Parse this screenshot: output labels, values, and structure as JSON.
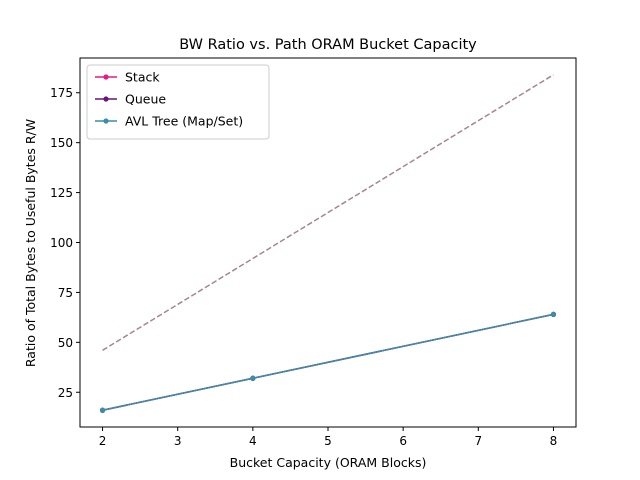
{
  "chart_data": {
    "type": "line",
    "title": "BW Ratio vs. Path ORAM Bucket Capacity",
    "xlabel": "Bucket Capacity (ORAM Blocks)",
    "ylabel": "Ratio of Total Bytes to Useful Bytes R/W",
    "xlim": [
      1.7,
      8.3
    ],
    "ylim": [
      7.6,
      192.4
    ],
    "xticks": [
      2,
      3,
      4,
      5,
      6,
      7,
      8
    ],
    "yticks": [
      25,
      50,
      75,
      100,
      125,
      150,
      175
    ],
    "grid": false,
    "legend_position": "top-left",
    "series": [
      {
        "name": "Stack",
        "color": "#e7188a",
        "style": "solid",
        "marker": true,
        "x": [
          2,
          4,
          8
        ],
        "y": [
          16,
          32,
          64
        ]
      },
      {
        "name": "Queue",
        "color": "#6a1577",
        "style": "solid",
        "marker": true,
        "x": [
          2,
          4,
          8
        ],
        "y": [
          16,
          32,
          64
        ]
      },
      {
        "name": "AVL Tree (Map/Set)",
        "color": "#3a8ea7",
        "style": "solid",
        "marker": true,
        "x": [
          2,
          4,
          8
        ],
        "y": [
          16,
          32,
          64
        ]
      },
      {
        "color": "#a88491",
        "style": "dashed",
        "marker": false,
        "x": [
          2,
          4,
          8
        ],
        "y": [
          46,
          92,
          184
        ]
      }
    ]
  }
}
